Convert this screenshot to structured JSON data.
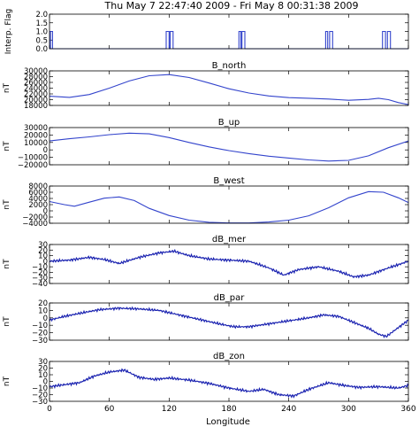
{
  "chart_data": {
    "type": "line",
    "title": "Thu May  7 22:47:40 2009 - Fri May  8 00:31:38 2009",
    "xlabel": "Longitude",
    "xlim": [
      0,
      360
    ],
    "xticks": [
      "0",
      "60",
      "120",
      "180",
      "240",
      "300",
      "360"
    ],
    "line_color": "#3344cc",
    "panels": [
      {
        "key": "flag",
        "title": "",
        "ylabel": "Interp. Flag",
        "ylim": [
          0,
          2
        ],
        "yticks": [
          "0.0",
          "0.5",
          "1.0",
          "1.5",
          "2.0"
        ],
        "tickvals": [
          0,
          0.5,
          1,
          1.5,
          2
        ],
        "series": [
          {
            "x": 0,
            "y": 0
          },
          {
            "x": 1,
            "y": 0
          },
          {
            "x": 1,
            "y": 1
          },
          {
            "x": 3,
            "y": 1
          },
          {
            "x": 3,
            "y": 0
          },
          {
            "x": 117,
            "y": 0
          },
          {
            "x": 117,
            "y": 1
          },
          {
            "x": 120,
            "y": 1
          },
          {
            "x": 120,
            "y": 0
          },
          {
            "x": 121,
            "y": 0
          },
          {
            "x": 121,
            "y": 1
          },
          {
            "x": 124,
            "y": 1
          },
          {
            "x": 124,
            "y": 0
          },
          {
            "x": 190,
            "y": 0
          },
          {
            "x": 190,
            "y": 1
          },
          {
            "x": 192,
            "y": 1
          },
          {
            "x": 192,
            "y": 0
          },
          {
            "x": 193,
            "y": 0
          },
          {
            "x": 193,
            "y": 1
          },
          {
            "x": 196,
            "y": 1
          },
          {
            "x": 196,
            "y": 0
          },
          {
            "x": 277,
            "y": 0
          },
          {
            "x": 277,
            "y": 1
          },
          {
            "x": 279,
            "y": 1
          },
          {
            "x": 279,
            "y": 0
          },
          {
            "x": 281,
            "y": 0
          },
          {
            "x": 281,
            "y": 1
          },
          {
            "x": 284,
            "y": 1
          },
          {
            "x": 284,
            "y": 0
          },
          {
            "x": 334,
            "y": 0
          },
          {
            "x": 334,
            "y": 1
          },
          {
            "x": 337,
            "y": 1
          },
          {
            "x": 337,
            "y": 0
          },
          {
            "x": 339,
            "y": 0
          },
          {
            "x": 339,
            "y": 1
          },
          {
            "x": 342,
            "y": 1
          },
          {
            "x": 342,
            "y": 0
          },
          {
            "x": 360,
            "y": 0
          }
        ]
      },
      {
        "key": "b_north",
        "title": "B_north",
        "ylabel": "nT",
        "ylim": [
          18000,
          30000
        ],
        "yticks": [
          "18000",
          "20000",
          "22000",
          "24000",
          "26000",
          "28000",
          "30000"
        ],
        "tickvals": [
          18000,
          20000,
          22000,
          24000,
          26000,
          28000,
          30000
        ],
        "series": [
          {
            "x": 0,
            "y": 21200
          },
          {
            "x": 20,
            "y": 20800
          },
          {
            "x": 40,
            "y": 21800
          },
          {
            "x": 60,
            "y": 24000
          },
          {
            "x": 80,
            "y": 26500
          },
          {
            "x": 100,
            "y": 28300
          },
          {
            "x": 120,
            "y": 28700
          },
          {
            "x": 140,
            "y": 27700
          },
          {
            "x": 160,
            "y": 25800
          },
          {
            "x": 180,
            "y": 23800
          },
          {
            "x": 200,
            "y": 22300
          },
          {
            "x": 220,
            "y": 21300
          },
          {
            "x": 240,
            "y": 20700
          },
          {
            "x": 260,
            "y": 20500
          },
          {
            "x": 280,
            "y": 20200
          },
          {
            "x": 300,
            "y": 19800
          },
          {
            "x": 320,
            "y": 20100
          },
          {
            "x": 330,
            "y": 20500
          },
          {
            "x": 340,
            "y": 20000
          },
          {
            "x": 350,
            "y": 19000
          },
          {
            "x": 360,
            "y": 18300
          }
        ]
      },
      {
        "key": "b_up",
        "title": "B_up",
        "ylabel": "nT",
        "ylim": [
          -20000,
          30000
        ],
        "yticks": [
          "−20000",
          "−10000",
          "0",
          "10000",
          "20000",
          "30000"
        ],
        "tickvals": [
          -20000,
          -10000,
          0,
          10000,
          20000,
          30000
        ],
        "series": [
          {
            "x": 0,
            "y": 12000
          },
          {
            "x": 20,
            "y": 15000
          },
          {
            "x": 40,
            "y": 17500
          },
          {
            "x": 60,
            "y": 20500
          },
          {
            "x": 80,
            "y": 22500
          },
          {
            "x": 100,
            "y": 21500
          },
          {
            "x": 120,
            "y": 16500
          },
          {
            "x": 140,
            "y": 10000
          },
          {
            "x": 160,
            "y": 4000
          },
          {
            "x": 180,
            "y": -1000
          },
          {
            "x": 200,
            "y": -5000
          },
          {
            "x": 220,
            "y": -8500
          },
          {
            "x": 240,
            "y": -11000
          },
          {
            "x": 260,
            "y": -13500
          },
          {
            "x": 280,
            "y": -15000
          },
          {
            "x": 300,
            "y": -14000
          },
          {
            "x": 320,
            "y": -8000
          },
          {
            "x": 340,
            "y": 3000
          },
          {
            "x": 360,
            "y": 12000
          }
        ]
      },
      {
        "key": "b_west",
        "title": "B_west",
        "ylabel": "nT",
        "ylim": [
          -4000,
          8000
        ],
        "yticks": [
          "−4000",
          "−2000",
          "0",
          "2000",
          "4000",
          "6000",
          "8000"
        ],
        "tickvals": [
          -4000,
          -2000,
          0,
          2000,
          4000,
          6000,
          8000
        ],
        "series": [
          {
            "x": 0,
            "y": 3000
          },
          {
            "x": 15,
            "y": 2000
          },
          {
            "x": 25,
            "y": 1500
          },
          {
            "x": 40,
            "y": 2800
          },
          {
            "x": 55,
            "y": 4100
          },
          {
            "x": 70,
            "y": 4500
          },
          {
            "x": 85,
            "y": 3300
          },
          {
            "x": 100,
            "y": 800
          },
          {
            "x": 120,
            "y": -1500
          },
          {
            "x": 140,
            "y": -3000
          },
          {
            "x": 160,
            "y": -3700
          },
          {
            "x": 180,
            "y": -3900
          },
          {
            "x": 200,
            "y": -3900
          },
          {
            "x": 220,
            "y": -3600
          },
          {
            "x": 240,
            "y": -3000
          },
          {
            "x": 260,
            "y": -1600
          },
          {
            "x": 280,
            "y": 1000
          },
          {
            "x": 300,
            "y": 4200
          },
          {
            "x": 320,
            "y": 6200
          },
          {
            "x": 335,
            "y": 6000
          },
          {
            "x": 350,
            "y": 4200
          },
          {
            "x": 360,
            "y": 2700
          }
        ]
      },
      {
        "key": "db_mer",
        "title": "dB_mer",
        "ylabel": "nT",
        "ylim": [
          -40,
          30
        ],
        "yticks": [
          "−40",
          "−30",
          "−20",
          "−10",
          "0",
          "10",
          "20",
          "30"
        ],
        "tickvals": [
          -40,
          -30,
          -20,
          -10,
          0,
          10,
          20,
          30
        ],
        "series": [
          {
            "x": 0,
            "y": 0
          },
          {
            "x": 20,
            "y": 2
          },
          {
            "x": 40,
            "y": 7
          },
          {
            "x": 55,
            "y": 3
          },
          {
            "x": 70,
            "y": -4
          },
          {
            "x": 90,
            "y": 7
          },
          {
            "x": 110,
            "y": 15
          },
          {
            "x": 125,
            "y": 18
          },
          {
            "x": 140,
            "y": 10
          },
          {
            "x": 160,
            "y": 4
          },
          {
            "x": 180,
            "y": 2
          },
          {
            "x": 200,
            "y": 0
          },
          {
            "x": 220,
            "y": -12
          },
          {
            "x": 235,
            "y": -25
          },
          {
            "x": 250,
            "y": -15
          },
          {
            "x": 270,
            "y": -10
          },
          {
            "x": 290,
            "y": -18
          },
          {
            "x": 305,
            "y": -28
          },
          {
            "x": 320,
            "y": -25
          },
          {
            "x": 340,
            "y": -12
          },
          {
            "x": 352,
            "y": -5
          },
          {
            "x": 360,
            "y": 0
          }
        ]
      },
      {
        "key": "db_par",
        "title": "dB_par",
        "ylabel": "nT",
        "ylim": [
          -30,
          20
        ],
        "yticks": [
          "−30",
          "−20",
          "−10",
          "0",
          "10",
          "20"
        ],
        "tickvals": [
          -30,
          -20,
          -10,
          0,
          10,
          20
        ],
        "series": [
          {
            "x": 0,
            "y": -3
          },
          {
            "x": 15,
            "y": 2
          },
          {
            "x": 30,
            "y": 6
          },
          {
            "x": 50,
            "y": 11
          },
          {
            "x": 70,
            "y": 13
          },
          {
            "x": 90,
            "y": 12
          },
          {
            "x": 110,
            "y": 10
          },
          {
            "x": 130,
            "y": 4
          },
          {
            "x": 150,
            "y": -2
          },
          {
            "x": 170,
            "y": -8
          },
          {
            "x": 185,
            "y": -12
          },
          {
            "x": 200,
            "y": -12
          },
          {
            "x": 220,
            "y": -8
          },
          {
            "x": 240,
            "y": -4
          },
          {
            "x": 260,
            "y": 0
          },
          {
            "x": 275,
            "y": 4
          },
          {
            "x": 290,
            "y": 2
          },
          {
            "x": 305,
            "y": -6
          },
          {
            "x": 320,
            "y": -14
          },
          {
            "x": 330,
            "y": -22
          },
          {
            "x": 338,
            "y": -25
          },
          {
            "x": 348,
            "y": -15
          },
          {
            "x": 360,
            "y": -3
          }
        ]
      },
      {
        "key": "db_zon",
        "title": "dB_zon",
        "ylabel": "nT",
        "ylim": [
          -30,
          30
        ],
        "yticks": [
          "−30",
          "−20",
          "−10",
          "0",
          "10",
          "20",
          "30"
        ],
        "tickvals": [
          -30,
          -20,
          -10,
          0,
          10,
          20,
          30
        ],
        "series": [
          {
            "x": 0,
            "y": -8
          },
          {
            "x": 15,
            "y": -5
          },
          {
            "x": 30,
            "y": -2
          },
          {
            "x": 45,
            "y": 8
          },
          {
            "x": 60,
            "y": 14
          },
          {
            "x": 75,
            "y": 17
          },
          {
            "x": 90,
            "y": 6
          },
          {
            "x": 105,
            "y": 3
          },
          {
            "x": 120,
            "y": 5
          },
          {
            "x": 140,
            "y": 2
          },
          {
            "x": 160,
            "y": -3
          },
          {
            "x": 180,
            "y": -10
          },
          {
            "x": 200,
            "y": -15
          },
          {
            "x": 215,
            "y": -12
          },
          {
            "x": 230,
            "y": -20
          },
          {
            "x": 245,
            "y": -22
          },
          {
            "x": 260,
            "y": -12
          },
          {
            "x": 280,
            "y": -2
          },
          {
            "x": 295,
            "y": -6
          },
          {
            "x": 310,
            "y": -9
          },
          {
            "x": 330,
            "y": -8
          },
          {
            "x": 350,
            "y": -10
          },
          {
            "x": 360,
            "y": -6
          }
        ]
      }
    ]
  }
}
